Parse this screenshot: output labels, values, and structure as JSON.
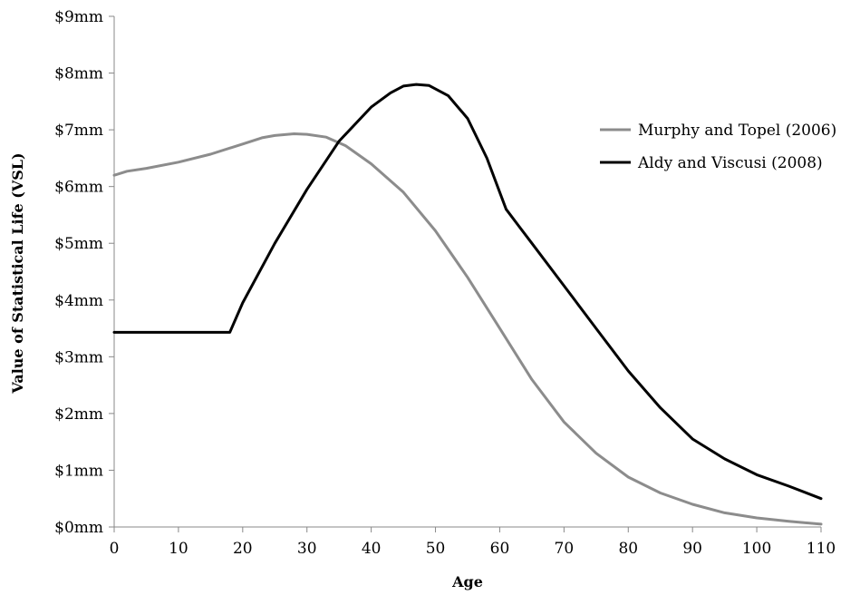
{
  "chart_data": {
    "type": "line",
    "title": "",
    "xlabel": "Age",
    "ylabel": "Value of Statistical Life (VSL)",
    "xlim": [
      0,
      110
    ],
    "ylim": [
      0,
      9
    ],
    "x_ticks": [
      0,
      10,
      20,
      30,
      40,
      50,
      60,
      70,
      80,
      90,
      100,
      110
    ],
    "x_tick_labels": [
      "0",
      "10",
      "20",
      "30",
      "40",
      "50",
      "60",
      "70",
      "80",
      "90",
      "100",
      "110"
    ],
    "y_ticks": [
      0,
      1,
      2,
      3,
      4,
      5,
      6,
      7,
      8,
      9
    ],
    "y_tick_labels": [
      "$0mm",
      "$1mm",
      "$2mm",
      "$3mm",
      "$4mm",
      "$5mm",
      "$6mm",
      "$7mm",
      "$8mm",
      "$9mm"
    ],
    "grid": false,
    "legend_position": "right",
    "series": [
      {
        "name": "Murphy and Topel (2006)",
        "color": "#8c8c8c",
        "points": [
          [
            0,
            6.2
          ],
          [
            2,
            6.27
          ],
          [
            5,
            6.32
          ],
          [
            10,
            6.43
          ],
          [
            15,
            6.57
          ],
          [
            20,
            6.75
          ],
          [
            23,
            6.86
          ],
          [
            25,
            6.9
          ],
          [
            28,
            6.93
          ],
          [
            30,
            6.92
          ],
          [
            33,
            6.87
          ],
          [
            36,
            6.72
          ],
          [
            40,
            6.4
          ],
          [
            45,
            5.9
          ],
          [
            50,
            5.22
          ],
          [
            55,
            4.4
          ],
          [
            60,
            3.5
          ],
          [
            65,
            2.6
          ],
          [
            70,
            1.85
          ],
          [
            75,
            1.3
          ],
          [
            80,
            0.88
          ],
          [
            85,
            0.6
          ],
          [
            90,
            0.4
          ],
          [
            95,
            0.25
          ],
          [
            100,
            0.16
          ],
          [
            105,
            0.1
          ],
          [
            110,
            0.05
          ]
        ]
      },
      {
        "name": "Aldy and Viscusi (2008)",
        "color": "#000000",
        "points": [
          [
            0,
            3.43
          ],
          [
            18,
            3.43
          ],
          [
            20,
            3.95
          ],
          [
            25,
            5.0
          ],
          [
            30,
            5.95
          ],
          [
            35,
            6.8
          ],
          [
            40,
            7.4
          ],
          [
            43,
            7.65
          ],
          [
            45,
            7.77
          ],
          [
            47,
            7.8
          ],
          [
            49,
            7.78
          ],
          [
            52,
            7.6
          ],
          [
            55,
            7.2
          ],
          [
            58,
            6.5
          ],
          [
            61,
            5.6
          ],
          [
            63,
            5.3
          ],
          [
            65,
            5.0
          ],
          [
            70,
            4.25
          ],
          [
            75,
            3.5
          ],
          [
            80,
            2.75
          ],
          [
            85,
            2.1
          ],
          [
            90,
            1.55
          ],
          [
            95,
            1.2
          ],
          [
            100,
            0.92
          ],
          [
            105,
            0.72
          ],
          [
            110,
            0.5
          ]
        ]
      }
    ]
  }
}
